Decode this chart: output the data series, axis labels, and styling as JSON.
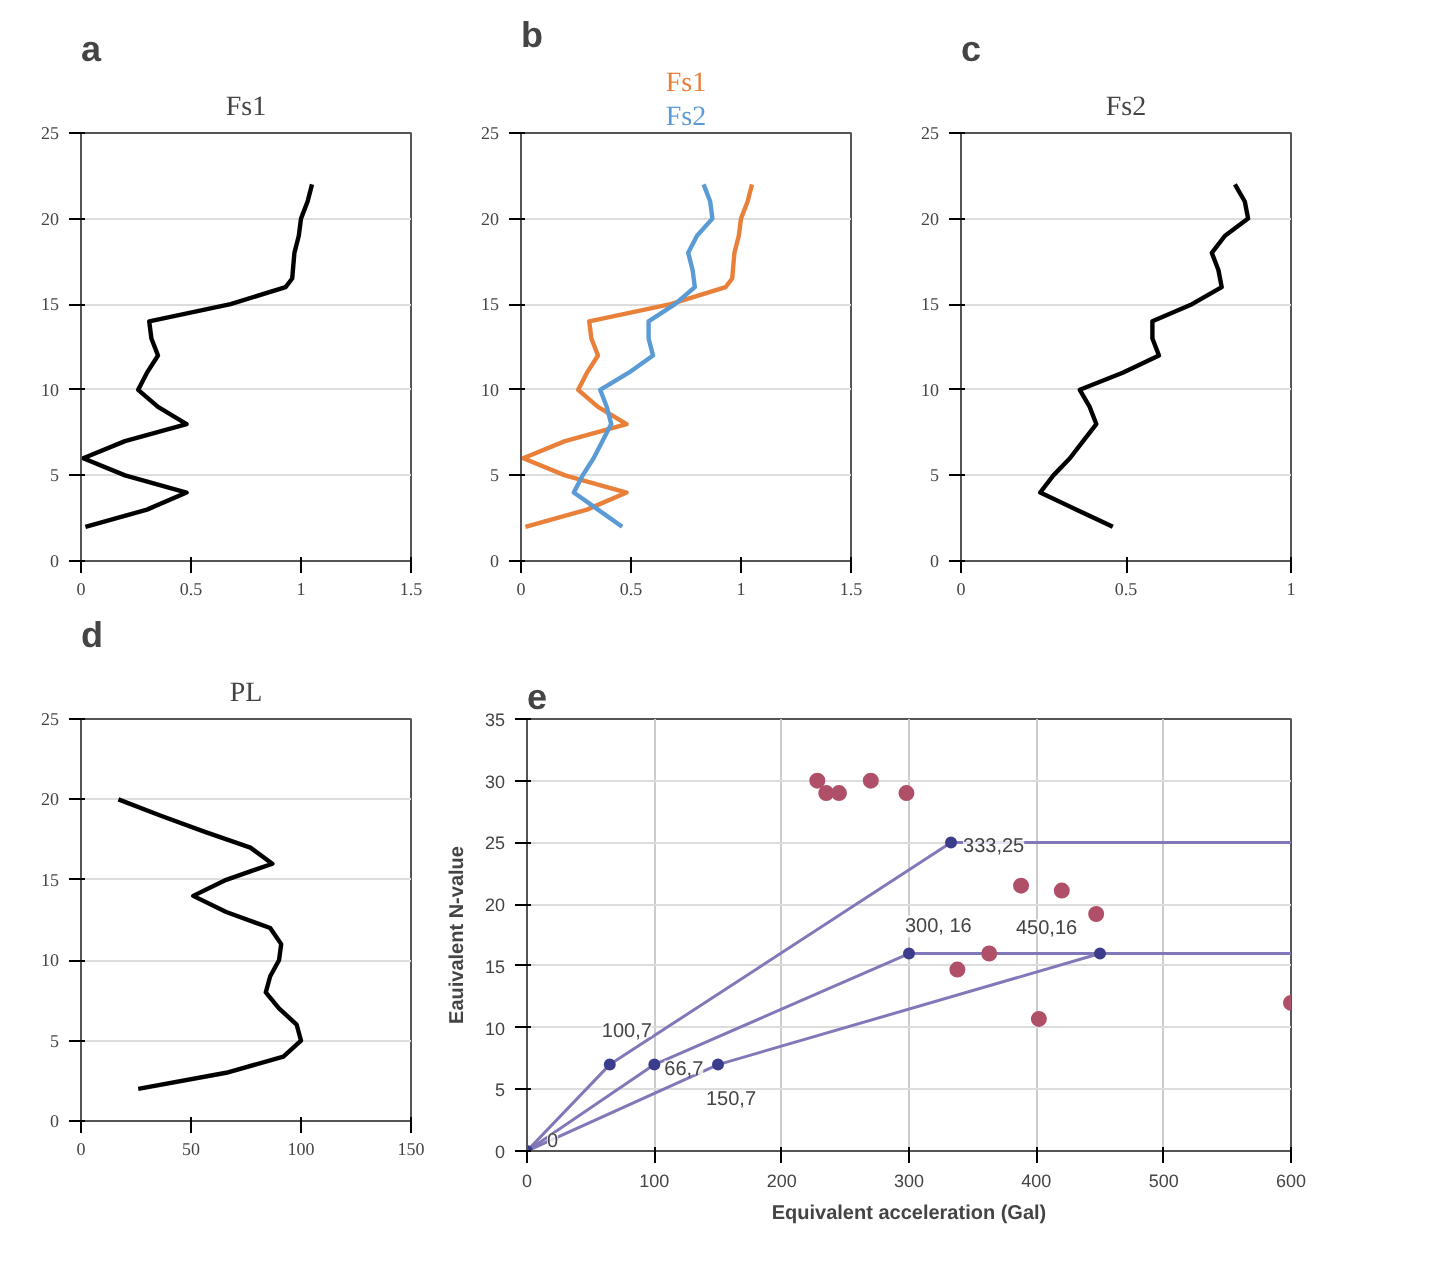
{
  "chart_data": [
    {
      "type": "line",
      "title": "Fs1",
      "annotations": [
        "a"
      ],
      "xlim": [
        0,
        1.5
      ],
      "xticks": [
        0,
        0.5,
        1,
        1.5
      ],
      "ylim": [
        0,
        25
      ],
      "yticks": [
        0,
        5,
        10,
        15,
        20,
        25
      ],
      "grid": "y",
      "series": [
        {
          "color": "#000000",
          "x": [
            0.02,
            0.3,
            0.48,
            0.2,
            0.01,
            0.2,
            0.48,
            0.35,
            0.26,
            0.3,
            0.35,
            0.32,
            0.31,
            0.68,
            0.93,
            0.96,
            0.97,
            0.99,
            1.0,
            1.03,
            1.05
          ],
          "values": [
            2,
            3,
            4,
            5,
            6,
            7,
            8,
            9,
            10,
            11,
            12,
            13,
            14,
            15,
            16,
            16.5,
            18,
            19,
            20,
            21,
            22
          ]
        }
      ]
    },
    {
      "type": "line",
      "xlim": [
        0,
        1.5
      ],
      "xticks": [
        0,
        0.5,
        1,
        1.5
      ],
      "ylim": [
        0,
        25
      ],
      "yticks": [
        0,
        5,
        10,
        15,
        20,
        25
      ],
      "grid": "y",
      "annotations": [
        "b"
      ],
      "legend": "top",
      "series": [
        {
          "name": "Fs1",
          "color": "#e8803a",
          "x": [
            0.02,
            0.3,
            0.48,
            0.2,
            0.01,
            0.2,
            0.48,
            0.35,
            0.26,
            0.3,
            0.35,
            0.32,
            0.31,
            0.68,
            0.93,
            0.96,
            0.97,
            0.99,
            1.0,
            1.03,
            1.05
          ],
          "values": [
            2,
            3,
            4,
            5,
            6,
            7,
            8,
            9,
            10,
            11,
            12,
            13,
            14,
            15,
            16,
            16.5,
            18,
            19,
            20,
            21,
            22
          ]
        },
        {
          "name": "Fs2",
          "color": "#5b9bd5",
          "x": [
            0.46,
            0.35,
            0.24,
            0.28,
            0.33,
            0.37,
            0.41,
            0.39,
            0.36,
            0.49,
            0.6,
            0.58,
            0.58,
            0.7,
            0.79,
            0.78,
            0.76,
            0.8,
            0.87,
            0.86,
            0.83
          ],
          "values": [
            2,
            3,
            4,
            5,
            6,
            7,
            8,
            9,
            10,
            11,
            12,
            13,
            14,
            15,
            16,
            17,
            18,
            19,
            20,
            21,
            22
          ]
        }
      ]
    },
    {
      "type": "line",
      "title": "Fs2",
      "annotations": [
        "c"
      ],
      "xlim": [
        0,
        1
      ],
      "xticks": [
        0,
        0.5,
        1
      ],
      "ylim": [
        0,
        25
      ],
      "yticks": [
        0,
        5,
        10,
        15,
        20,
        25
      ],
      "grid": "y",
      "series": [
        {
          "color": "#000000",
          "x": [
            0.46,
            0.35,
            0.24,
            0.28,
            0.33,
            0.37,
            0.41,
            0.39,
            0.36,
            0.49,
            0.6,
            0.58,
            0.58,
            0.7,
            0.79,
            0.78,
            0.76,
            0.8,
            0.87,
            0.86,
            0.83
          ],
          "values": [
            2,
            3,
            4,
            5,
            6,
            7,
            8,
            9,
            10,
            11,
            12,
            13,
            14,
            15,
            16,
            17,
            18,
            19,
            20,
            21,
            22
          ]
        }
      ]
    },
    {
      "type": "line",
      "title": "PL",
      "annotations": [
        "d"
      ],
      "xlim": [
        0,
        150
      ],
      "xticks": [
        0,
        50,
        100,
        150
      ],
      "ylim": [
        0,
        25
      ],
      "yticks": [
        0,
        5,
        10,
        15,
        20,
        25
      ],
      "grid": "y",
      "series": [
        {
          "color": "#000000",
          "x": [
            26,
            66,
            92,
            100,
            98,
            90,
            84,
            86,
            90,
            91,
            86,
            66,
            51,
            66,
            87,
            77,
            56,
            36,
            17
          ],
          "values": [
            2,
            3,
            4,
            5,
            6,
            7,
            8,
            9,
            10,
            11,
            12,
            13,
            14,
            15,
            16,
            17,
            18,
            19,
            20
          ]
        }
      ]
    },
    {
      "type": "scatter",
      "xlabel": "Equivalent acceleration (Gal)",
      "ylabel": "Eauivalent N-value",
      "xlim": [
        0,
        600
      ],
      "xticks": [
        0,
        100,
        200,
        300,
        400,
        500,
        600
      ],
      "ylim": [
        0,
        35
      ],
      "yticks": [
        0,
        5,
        10,
        15,
        20,
        25,
        30,
        35
      ],
      "grid": true,
      "annotations": [
        "e",
        {
          "text": "333,25",
          "x": 333,
          "y": 25
        },
        {
          "text": "300, 16",
          "x": 300,
          "y": 16
        },
        {
          "text": "450,16",
          "x": 450,
          "y": 16
        },
        {
          "text": "100,7",
          "x": 65,
          "y": 7
        },
        {
          "text": "66,7",
          "x": 100,
          "y": 7
        },
        {
          "text": "150,7",
          "x": 150,
          "y": 7
        },
        {
          "text": "0",
          "x": 0,
          "y": 0
        }
      ],
      "series": [
        {
          "type": "line",
          "color": "#8078b8",
          "x": [
            0,
            65,
            333,
            600
          ],
          "values": [
            0,
            7,
            25,
            25
          ]
        },
        {
          "type": "line",
          "color": "#8078b8",
          "x": [
            0,
            100,
            300,
            600
          ],
          "values": [
            0,
            7,
            16,
            16
          ]
        },
        {
          "type": "line",
          "color": "#8078b8",
          "x": [
            0,
            150,
            450,
            600
          ],
          "values": [
            0,
            7,
            16,
            16
          ]
        },
        {
          "type": "scatter",
          "color": "#3c3c8c",
          "x": [
            0,
            65,
            333,
            100,
            300,
            150,
            450
          ],
          "values": [
            0,
            7,
            25,
            7,
            16,
            7,
            16
          ]
        },
        {
          "type": "scatter",
          "color": "#b05068",
          "x": [
            228,
            235,
            245,
            270,
            298,
            338,
            363,
            388,
            420,
            447,
            402,
            600
          ],
          "values": [
            30,
            29,
            29,
            30,
            29,
            14.7,
            16,
            21.5,
            21.1,
            19.2,
            10.7,
            12
          ]
        }
      ]
    }
  ]
}
